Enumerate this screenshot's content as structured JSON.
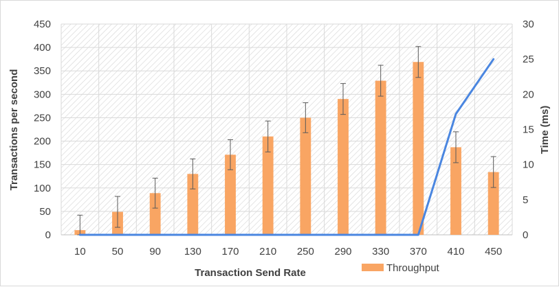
{
  "chart_data": {
    "type": "bar",
    "categories": [
      "10",
      "50",
      "90",
      "130",
      "170",
      "210",
      "250",
      "290",
      "330",
      "370",
      "410",
      "450"
    ],
    "xlabel": "Transaction Send Rate",
    "ylabel": "Transactions per second",
    "y2label": "Time (ms)",
    "ylim": [
      0,
      450
    ],
    "y2lim": [
      0,
      30
    ],
    "yticks": [
      "0",
      "50",
      "100",
      "150",
      "200",
      "250",
      "300",
      "350",
      "400",
      "450"
    ],
    "y2ticks": [
      "0",
      "5",
      "10",
      "15",
      "20",
      "25",
      "30"
    ],
    "grid": true,
    "legend_position": "bottom-right",
    "series": [
      {
        "name": "Throughput",
        "kind": "bar",
        "axis": "left",
        "color": "#f9a563",
        "values": [
          10,
          49,
          89,
          130,
          171,
          210,
          250,
          290,
          329,
          369,
          187,
          134
        ],
        "error": [
          32,
          33,
          32,
          32,
          32,
          33,
          32,
          33,
          33,
          33,
          33,
          33
        ]
      },
      {
        "kind": "line",
        "axis": "right",
        "color": "#4a86e0",
        "values": [
          0,
          0,
          0,
          0,
          0,
          0,
          0,
          0,
          0,
          0,
          17.2,
          25
        ]
      }
    ]
  }
}
